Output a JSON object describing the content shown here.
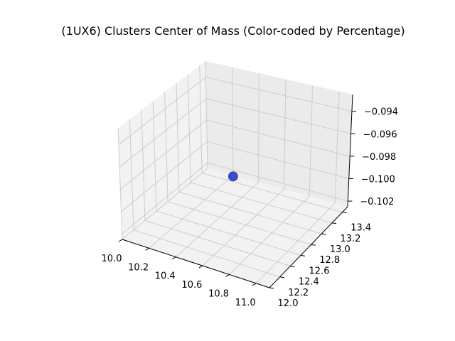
{
  "chart_data": {
    "type": "scatter",
    "projection": "3d",
    "title": "(1UX6) Clusters Center of Mass (Color-coded by Percentage)",
    "xlabel": "",
    "ylabel": "",
    "zlabel": "",
    "xlim": [
      10.0,
      11.1
    ],
    "ylim": [
      12.0,
      13.5
    ],
    "zlim": [
      -0.1025,
      -0.0925
    ],
    "x_ticks": [
      10.0,
      10.2,
      10.4,
      10.6,
      10.8,
      11.0
    ],
    "x_tick_labels": [
      "10.0",
      "10.2",
      "10.4",
      "10.6",
      "10.8",
      "11.0"
    ],
    "y_ticks": [
      12.0,
      12.2,
      12.4,
      12.6,
      12.8,
      13.0,
      13.2,
      13.4
    ],
    "y_tick_labels": [
      "12.0",
      "12.2",
      "12.4",
      "12.6",
      "12.8",
      "13.0",
      "13.2",
      "13.4"
    ],
    "z_ticks": [
      -0.102,
      -0.1,
      -0.098,
      -0.096,
      -0.094
    ],
    "z_tick_labels": [
      "−0.102",
      "−0.100",
      "−0.098",
      "−0.096",
      "−0.094"
    ],
    "grid": true,
    "points": [
      {
        "x": 10.5,
        "y": 12.8,
        "z": -0.0985,
        "color": "#3b4cc0"
      }
    ],
    "colors": {
      "pane_x": "#f2f2f2",
      "pane_y": "#ebebeb",
      "pane_z": "#f2f2f2"
    }
  }
}
